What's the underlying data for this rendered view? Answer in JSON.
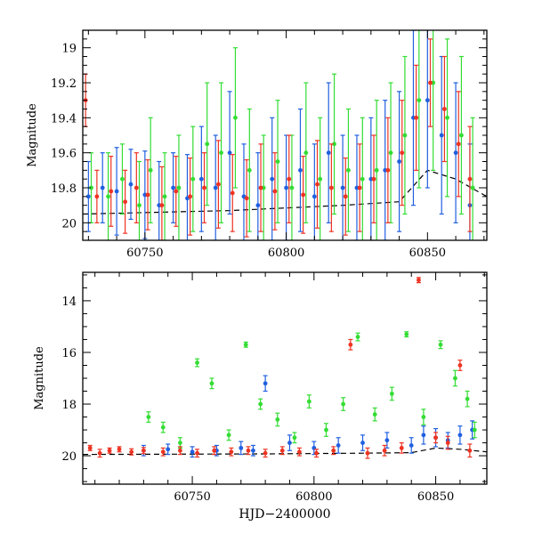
{
  "chart_data": [
    {
      "type": "scatter",
      "panel": "top",
      "title": "",
      "xlabel": "",
      "ylabel": "Magnitude",
      "xlim": [
        60728,
        60871
      ],
      "ylim": [
        20.1,
        18.9
      ],
      "y_inverted": true,
      "xticks": [
        60750,
        60800,
        60850
      ],
      "yticks": [
        19,
        19.2,
        19.4,
        19.6,
        19.8,
        20
      ],
      "ytick_labels": [
        "19",
        "19.2",
        "19.4",
        "19.6",
        "19.8",
        "20"
      ],
      "grid": false,
      "series": [
        {
          "color": "#2060e0",
          "x": [
            60730,
            60735,
            60740,
            60745,
            60750,
            60755,
            60760,
            60765,
            60770,
            60775,
            60780,
            60785,
            60790,
            60795,
            60800,
            60805,
            60810,
            60815,
            60820,
            60825,
            60830,
            60835,
            60840,
            60845,
            60850,
            60855,
            60860,
            60865
          ],
          "y": [
            19.85,
            19.8,
            19.82,
            19.78,
            19.84,
            19.9,
            19.8,
            19.86,
            19.75,
            19.8,
            19.6,
            19.85,
            19.9,
            19.75,
            19.8,
            19.7,
            19.85,
            19.6,
            19.8,
            19.8,
            19.75,
            19.7,
            19.65,
            19.4,
            19.3,
            19.5,
            19.6,
            19.9
          ],
          "yerr": [
            0.2,
            0.2,
            0.25,
            0.2,
            0.25,
            0.25,
            0.2,
            0.25,
            0.3,
            0.3,
            0.35,
            0.3,
            0.3,
            0.35,
            0.3,
            0.35,
            0.3,
            0.4,
            0.3,
            0.3,
            0.35,
            0.4,
            0.4,
            0.5,
            0.5,
            0.45,
            0.4,
            0.35
          ]
        },
        {
          "color": "#33dd33",
          "x": [
            60731,
            60737,
            60742,
            60748,
            60752,
            60757,
            60762,
            60767,
            60772,
            60777,
            60782,
            60787,
            60792,
            60797,
            60802,
            60807,
            60812,
            60817,
            60822,
            60827,
            60832,
            60837,
            60842,
            60847,
            60852,
            60857,
            60862,
            60866
          ],
          "y": [
            19.8,
            19.85,
            19.75,
            19.9,
            19.7,
            19.85,
            19.8,
            19.75,
            19.55,
            19.6,
            19.4,
            19.7,
            19.8,
            19.65,
            19.8,
            19.6,
            19.75,
            19.55,
            19.7,
            19.75,
            19.7,
            19.6,
            19.5,
            19.3,
            19.2,
            19.4,
            19.5,
            19.8
          ],
          "yerr": [
            0.2,
            0.25,
            0.2,
            0.25,
            0.3,
            0.25,
            0.3,
            0.3,
            0.35,
            0.4,
            0.4,
            0.35,
            0.3,
            0.35,
            0.3,
            0.4,
            0.35,
            0.4,
            0.35,
            0.35,
            0.4,
            0.4,
            0.45,
            0.5,
            0.5,
            0.45,
            0.45,
            0.4
          ]
        },
        {
          "color": "#ee3322",
          "x": [
            60729,
            60733,
            60738,
            60743,
            60747,
            60751,
            60756,
            60761,
            60766,
            60771,
            60776,
            60781,
            60786,
            60791,
            60796,
            60801,
            60806,
            60811,
            60816,
            60821,
            60826,
            60831,
            60836,
            60841,
            60846,
            60851,
            60856,
            60861,
            60865
          ],
          "y": [
            19.3,
            19.85,
            19.82,
            19.88,
            19.8,
            19.84,
            19.9,
            19.82,
            19.85,
            19.8,
            19.78,
            19.83,
            19.86,
            19.8,
            19.82,
            19.75,
            19.84,
            19.78,
            19.8,
            19.85,
            19.8,
            19.75,
            19.7,
            19.6,
            19.4,
            19.2,
            19.35,
            19.55,
            19.75
          ],
          "yerr": [
            0.15,
            0.15,
            0.2,
            0.18,
            0.2,
            0.2,
            0.22,
            0.2,
            0.22,
            0.2,
            0.25,
            0.22,
            0.22,
            0.25,
            0.22,
            0.25,
            0.22,
            0.25,
            0.25,
            0.22,
            0.25,
            0.25,
            0.3,
            0.3,
            0.3,
            0.25,
            0.3,
            0.3,
            0.3
          ]
        }
      ],
      "model_curve": {
        "color": "#000000",
        "style": "dashed",
        "x": [
          60728,
          60780,
          60820,
          60840,
          60850,
          60860,
          60871
        ],
        "y": [
          19.95,
          19.93,
          19.9,
          19.88,
          19.7,
          19.75,
          19.85
        ]
      }
    },
    {
      "type": "scatter",
      "panel": "bottom",
      "title": "",
      "xlabel": "HJD−2400000",
      "ylabel": "Magnitude",
      "xlim": [
        60705,
        60871
      ],
      "ylim": [
        21.1,
        12.9
      ],
      "y_inverted": true,
      "xticks": [
        60750,
        60800,
        60850
      ],
      "yticks": [
        14,
        16,
        18,
        20
      ],
      "ytick_labels": [
        "14",
        "16",
        "18",
        "20"
      ],
      "grid": false,
      "series": [
        {
          "color": "#2060e0",
          "x": [
            60730,
            60740,
            60750,
            60760,
            60770,
            60775,
            60780,
            60790,
            60800,
            60810,
            60820,
            60830,
            60840,
            60845,
            60850,
            60855,
            60860,
            60865
          ],
          "y": [
            19.8,
            19.75,
            19.85,
            19.8,
            19.7,
            19.8,
            17.2,
            19.5,
            19.7,
            19.6,
            19.5,
            19.4,
            19.6,
            19.2,
            19.3,
            19.4,
            19.2,
            19.0
          ],
          "yerr": [
            0.2,
            0.2,
            0.2,
            0.2,
            0.25,
            0.2,
            0.3,
            0.3,
            0.25,
            0.3,
            0.3,
            0.3,
            0.3,
            0.35,
            0.35,
            0.3,
            0.35,
            0.35
          ]
        },
        {
          "color": "#33dd33",
          "x": [
            60732,
            60738,
            60745,
            60752,
            60758,
            60765,
            60772,
            60778,
            60785,
            60792,
            60798,
            60805,
            60812,
            60818,
            60825,
            60832,
            60838,
            60845,
            60852,
            60858,
            60863,
            60866
          ],
          "y": [
            18.5,
            18.9,
            19.5,
            16.4,
            17.2,
            19.2,
            15.7,
            18.0,
            18.6,
            19.3,
            17.9,
            19.0,
            18.0,
            15.4,
            18.4,
            17.6,
            15.3,
            18.5,
            15.7,
            17.0,
            17.8,
            19.0
          ],
          "yerr": [
            0.2,
            0.2,
            0.2,
            0.15,
            0.2,
            0.2,
            0.1,
            0.2,
            0.25,
            0.2,
            0.25,
            0.25,
            0.25,
            0.15,
            0.25,
            0.25,
            0.1,
            0.3,
            0.15,
            0.3,
            0.3,
            0.3
          ]
        },
        {
          "color": "#ee3322",
          "x": [
            60708,
            60712,
            60716,
            60720,
            60725,
            60730,
            60738,
            60745,
            60752,
            60759,
            60766,
            60773,
            60780,
            60787,
            60794,
            60801,
            60808,
            60815,
            60822,
            60829,
            60836,
            60843,
            60850,
            60855,
            60860,
            60864
          ],
          "y": [
            19.7,
            19.9,
            19.8,
            19.75,
            19.85,
            19.8,
            19.85,
            19.8,
            19.9,
            19.8,
            19.85,
            19.8,
            19.9,
            19.8,
            19.85,
            19.9,
            19.8,
            15.7,
            19.9,
            19.8,
            19.7,
            13.2,
            19.3,
            19.5,
            16.5,
            19.8
          ],
          "yerr": [
            0.1,
            0.15,
            0.1,
            0.1,
            0.12,
            0.12,
            0.15,
            0.15,
            0.15,
            0.15,
            0.15,
            0.15,
            0.15,
            0.15,
            0.15,
            0.15,
            0.15,
            0.2,
            0.2,
            0.2,
            0.2,
            0.1,
            0.2,
            0.25,
            0.2,
            0.25
          ]
        }
      ],
      "model_curve": {
        "color": "#000000",
        "style": "dashed",
        "x": [
          60705,
          60780,
          60820,
          60840,
          60850,
          60860,
          60871
        ],
        "y": [
          19.95,
          19.93,
          19.9,
          19.88,
          19.7,
          19.75,
          19.85
        ]
      }
    }
  ]
}
